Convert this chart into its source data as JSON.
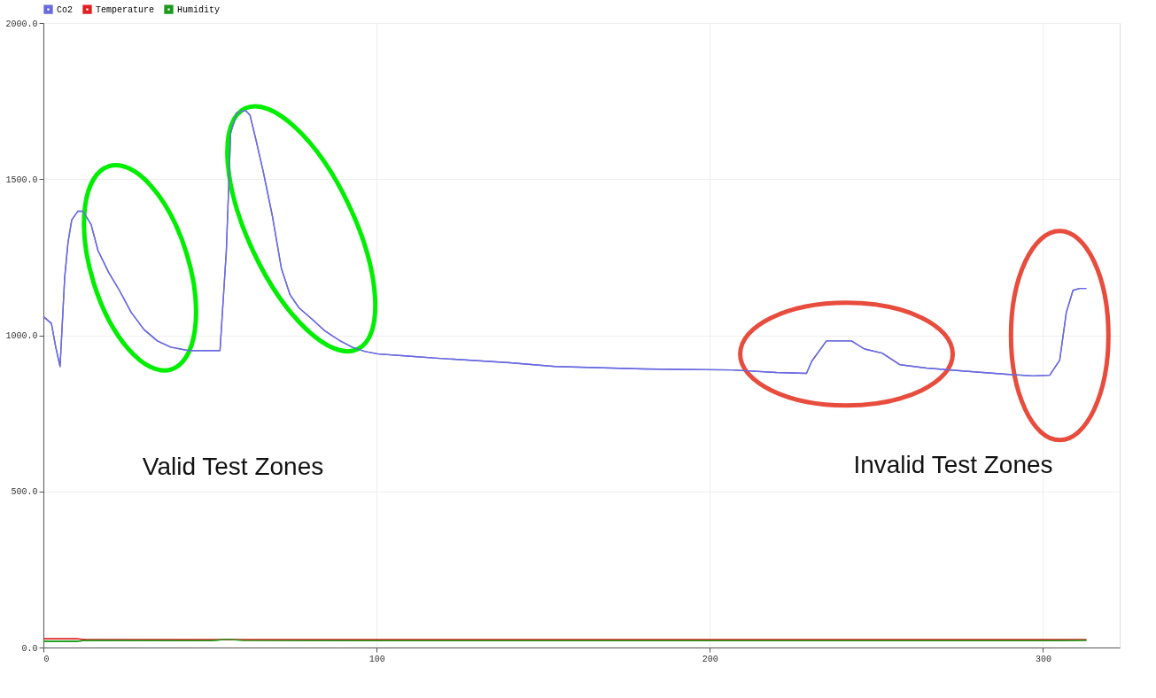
{
  "chart_data": {
    "type": "line",
    "legend": "top left",
    "grid": true,
    "marker": "none",
    "line_style": "solid",
    "xlim": [
      0,
      323
    ],
    "xticks": [
      0,
      100,
      200,
      300
    ],
    "ylim": [
      0,
      2000
    ],
    "yticks": [
      {
        "value": 0,
        "label": "0.0"
      },
      {
        "value": 500,
        "label": "500.0"
      },
      {
        "value": 1000,
        "label": "1000.0"
      },
      {
        "value": 1500,
        "label": "1500.0"
      },
      {
        "value": 2000,
        "label": "2000.0"
      }
    ],
    "series": [
      {
        "name": "Co2",
        "color": "#6a6ae0",
        "x": [
          0,
          2.4,
          3.7,
          5,
          6.4,
          7.4,
          8.5,
          10.3,
          11.9,
          14.3,
          16.4,
          19.6,
          22.8,
          26.3,
          30.2,
          34.2,
          38.2,
          43.5,
          47.5,
          53,
          54.9,
          56.2,
          58.1,
          60.7,
          62,
          63.9,
          66,
          68.7,
          71.4,
          74,
          76.7,
          80.6,
          84.6,
          88.6,
          92.6,
          96.6,
          100.5,
          108.5,
          119,
          140,
          153.6,
          180,
          206.6,
          220,
          229,
          230.6,
          235,
          242.5,
          246.4,
          251.7,
          257,
          265,
          275.8,
          289,
          297,
          302,
          305,
          307,
          309,
          311,
          313
        ],
        "values": [
          1060,
          1038,
          962,
          900,
          1187,
          1299,
          1369,
          1397,
          1397,
          1355,
          1271,
          1201,
          1144,
          1074,
          1018,
          982,
          962,
          951,
          951,
          951,
          1271,
          1649,
          1714,
          1720,
          1705,
          1621,
          1523,
          1383,
          1215,
          1130,
          1088,
          1052,
          1013,
          985,
          962,
          948,
          940,
          934,
          926,
          912,
          900,
          892,
          889,
          881,
          878,
          917,
          982,
          982,
          956,
          943,
          906,
          895,
          886,
          875,
          870,
          872,
          920,
          1074,
          1144,
          1150,
          1150
        ]
      },
      {
        "name": "Temperature",
        "color": "#e02020",
        "x": [
          0,
          10,
          13,
          60,
          100,
          200,
          300,
          313
        ],
        "values": [
          28,
          28,
          25,
          25,
          25,
          25,
          25,
          25
        ]
      },
      {
        "name": "Humidity",
        "color": "#1a9a1a",
        "x": [
          0,
          10,
          13,
          50,
          55,
          60,
          100,
          200,
          300,
          313
        ],
        "values": [
          20,
          20,
          23,
          22,
          26,
          23,
          22,
          22,
          22,
          23
        ]
      }
    ],
    "annotations": [
      "Valid Test Zones",
      "Invalid Test Zones"
    ]
  }
}
